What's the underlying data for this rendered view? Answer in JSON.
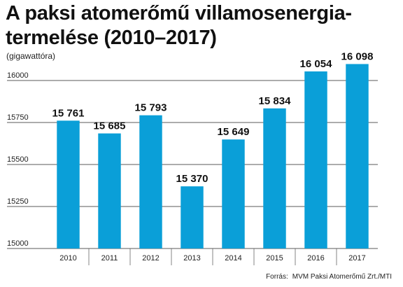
{
  "title": "A paksi atomerőmű villamosenergia-termelése (2010–2017)",
  "unit": "(gigawattóra)",
  "source_label": "Forrás:",
  "source_text": "MVM Paksi Atomerőmű Zrt./MTI",
  "colors": {
    "bar": "#0a9fd8",
    "grid": "#222222",
    "separator": "#666666"
  },
  "chart_data": {
    "type": "bar",
    "title": "A paksi atomerőmű villamosenergia-termelése (2010–2017)",
    "ylabel": "(gigawattóra)",
    "xlabel": "",
    "categories": [
      "2010",
      "2011",
      "2012",
      "2013",
      "2014",
      "2015",
      "2016",
      "2017"
    ],
    "values": [
      15761,
      15685,
      15793,
      15370,
      15649,
      15834,
      16054,
      16098
    ],
    "value_labels": [
      "15 761",
      "15 685",
      "15 793",
      "15 370",
      "15 649",
      "15 834",
      "16 054",
      "16 098"
    ],
    "yticks": [
      15000,
      15250,
      15500,
      15750,
      16000
    ],
    "ytick_labels": [
      "15000",
      "15250",
      "15500",
      "15750",
      "16000"
    ],
    "ylim": [
      15000,
      16000
    ],
    "grid": true,
    "legend": "none"
  }
}
